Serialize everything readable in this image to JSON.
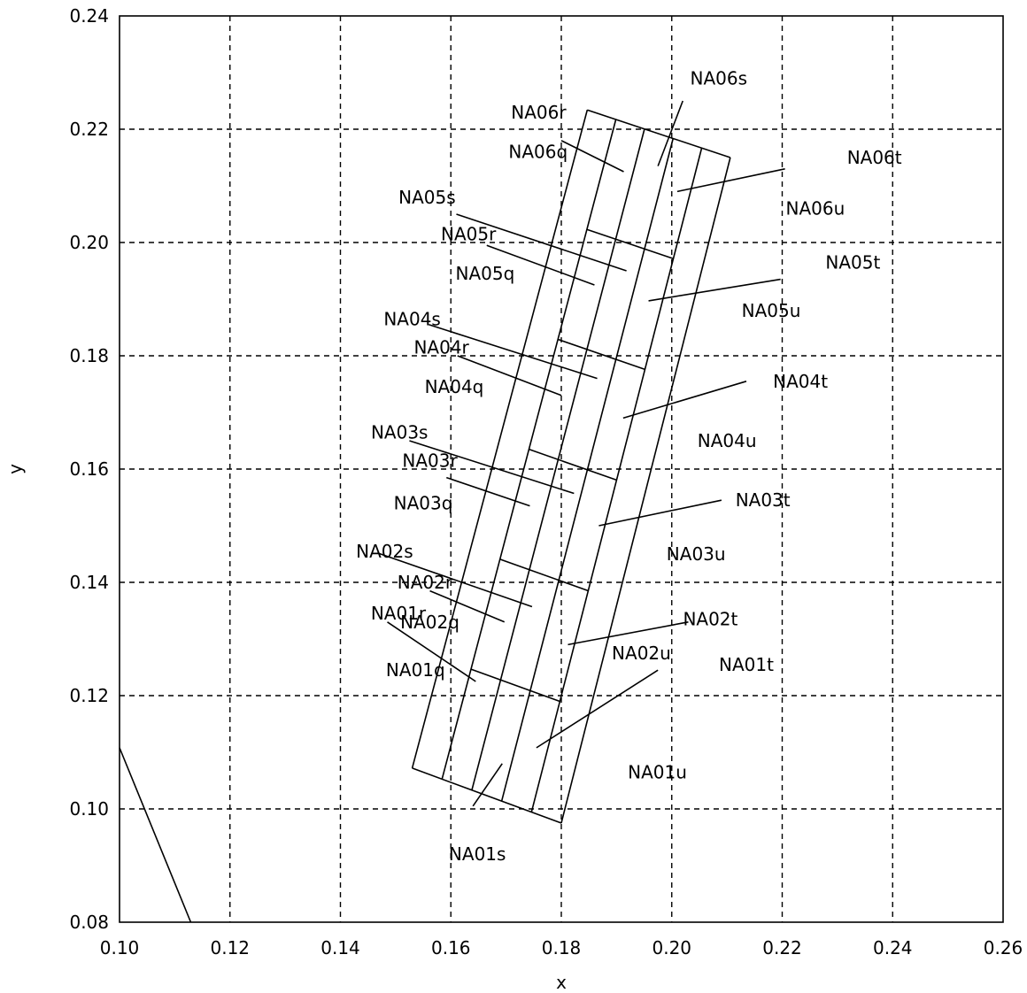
{
  "chart_data": {
    "type": "diagram",
    "xlabel": "x",
    "ylabel": "y",
    "xlim": [
      0.1,
      0.26
    ],
    "ylim": [
      0.08,
      0.24
    ],
    "x_ticks": [
      "0.10",
      "0.12",
      "0.14",
      "0.16",
      "0.18",
      "0.20",
      "0.22",
      "0.24",
      "0.26"
    ],
    "y_ticks": [
      "0.08",
      "0.10",
      "0.12",
      "0.14",
      "0.16",
      "0.18",
      "0.20",
      "0.22",
      "0.24"
    ],
    "grid": "dashed",
    "edge_line": [
      [
        0.1,
        0.1108
      ],
      [
        0.1129,
        0.08
      ]
    ],
    "grid_rows": 6,
    "grid_cols": 5,
    "corner_bottom_left": [
      0.153,
      0.1072
    ],
    "corner_bottom_right": [
      0.18,
      0.0975
    ],
    "corner_top_left": [
      0.1847,
      0.2234
    ],
    "corner_top_right": [
      0.2106,
      0.215
    ],
    "cells": [
      {
        "name": "NA01q",
        "label": "NA01q",
        "at": [
          0.1536,
          0.1245
        ]
      },
      {
        "name": "NA01r",
        "label": "NA01r",
        "at": [
          0.1505,
          0.1345
        ],
        "leader": [
          [
            0.1485,
            0.133
          ],
          [
            0.1645,
            0.1225
          ]
        ]
      },
      {
        "name": "NA01s",
        "label": "NA01s",
        "at": [
          0.1648,
          0.092
        ],
        "leader": [
          [
            0.164,
            0.1005
          ],
          [
            0.1693,
            0.108
          ]
        ]
      },
      {
        "name": "NA01t",
        "label": "NA01t",
        "at": [
          0.2135,
          0.1255
        ],
        "leader": [
          [
            0.1975,
            0.1245
          ],
          [
            0.1755,
            0.1108
          ]
        ]
      },
      {
        "name": "NA01u",
        "label": "NA01u",
        "at": [
          0.1974,
          0.1065
        ]
      },
      {
        "name": "NA02q",
        "label": "NA02q",
        "at": [
          0.1562,
          0.133
        ]
      },
      {
        "name": "NA02r",
        "label": "NA02r",
        "at": [
          0.1553,
          0.14
        ],
        "leader": [
          [
            0.1562,
            0.1385
          ],
          [
            0.1697,
            0.133
          ]
        ]
      },
      {
        "name": "NA02s",
        "label": "NA02s",
        "at": [
          0.148,
          0.1455
        ],
        "leader": [
          [
            0.1467,
            0.1452
          ],
          [
            0.1747,
            0.1357
          ]
        ]
      },
      {
        "name": "NA02t",
        "label": "NA02t",
        "at": [
          0.207,
          0.1335
        ],
        "leader": [
          [
            0.203,
            0.133
          ],
          [
            0.1812,
            0.129
          ]
        ]
      },
      {
        "name": "NA02u",
        "label": "NA02u",
        "at": [
          0.1945,
          0.1275
        ]
      },
      {
        "name": "NA03q",
        "label": "NA03q",
        "at": [
          0.155,
          0.154
        ]
      },
      {
        "name": "NA03r",
        "label": "NA03r",
        "at": [
          0.1562,
          0.1615
        ],
        "leader": [
          [
            0.1592,
            0.1585
          ],
          [
            0.1743,
            0.1535
          ]
        ]
      },
      {
        "name": "NA03s",
        "label": "NA03s",
        "at": [
          0.1507,
          0.1665
        ],
        "leader": [
          [
            0.1525,
            0.165
          ],
          [
            0.1823,
            0.1557
          ]
        ]
      },
      {
        "name": "NA03t",
        "label": "NA03t",
        "at": [
          0.2165,
          0.1545
        ],
        "leader": [
          [
            0.209,
            0.1545
          ],
          [
            0.1868,
            0.15
          ]
        ]
      },
      {
        "name": "NA03u",
        "label": "NA03u",
        "at": [
          0.2044,
          0.145
        ]
      },
      {
        "name": "NA04q",
        "label": "NA04q",
        "at": [
          0.1606,
          0.1745
        ]
      },
      {
        "name": "NA04r",
        "label": "NA04r",
        "at": [
          0.1583,
          0.1815
        ],
        "leader": [
          [
            0.1612,
            0.18
          ],
          [
            0.18,
            0.173
          ]
        ]
      },
      {
        "name": "NA04s",
        "label": "NA04s",
        "at": [
          0.153,
          0.1865
        ],
        "leader": [
          [
            0.156,
            0.1855
          ],
          [
            0.1865,
            0.176
          ]
        ]
      },
      {
        "name": "NA04t",
        "label": "NA04t",
        "at": [
          0.2233,
          0.1755
        ],
        "leader": [
          [
            0.2135,
            0.1755
          ],
          [
            0.1912,
            0.169
          ]
        ]
      },
      {
        "name": "NA04u",
        "label": "NA04u",
        "at": [
          0.21,
          0.165
        ]
      },
      {
        "name": "NA05q",
        "label": "NA05q",
        "at": [
          0.1662,
          0.1945
        ]
      },
      {
        "name": "NA05r",
        "label": "NA05r",
        "at": [
          0.1632,
          0.2015
        ],
        "leader": [
          [
            0.1665,
            0.1995
          ],
          [
            0.186,
            0.1925
          ]
        ]
      },
      {
        "name": "NA05s",
        "label": "NA05s",
        "at": [
          0.1557,
          0.208
        ],
        "leader": [
          [
            0.161,
            0.205
          ],
          [
            0.1918,
            0.195
          ]
        ]
      },
      {
        "name": "NA05t",
        "label": "NA05t",
        "at": [
          0.2328,
          0.1965
        ],
        "leader": [
          [
            0.2197,
            0.1935
          ],
          [
            0.1958,
            0.1897
          ]
        ]
      },
      {
        "name": "NA05u",
        "label": "NA05u",
        "at": [
          0.218,
          0.188
        ]
      },
      {
        "name": "NA06q",
        "label": "NA06q",
        "at": [
          0.1758,
          0.216
        ]
      },
      {
        "name": "NA06r",
        "label": "NA06r",
        "at": [
          0.1759,
          0.223
        ],
        "leader": [
          [
            0.18,
            0.218
          ],
          [
            0.1913,
            0.2125
          ]
        ]
      },
      {
        "name": "NA06s",
        "label": "NA06s",
        "at": [
          0.2085,
          0.229
        ],
        "leader": [
          [
            0.202,
            0.225
          ],
          [
            0.1975,
            0.2135
          ]
        ]
      },
      {
        "name": "NA06t",
        "label": "NA06t",
        "at": [
          0.2367,
          0.215
        ],
        "leader": [
          [
            0.2205,
            0.213
          ],
          [
            0.201,
            0.209
          ]
        ]
      },
      {
        "name": "NA06u",
        "label": "NA06u",
        "at": [
          0.226,
          0.206
        ]
      }
    ]
  }
}
